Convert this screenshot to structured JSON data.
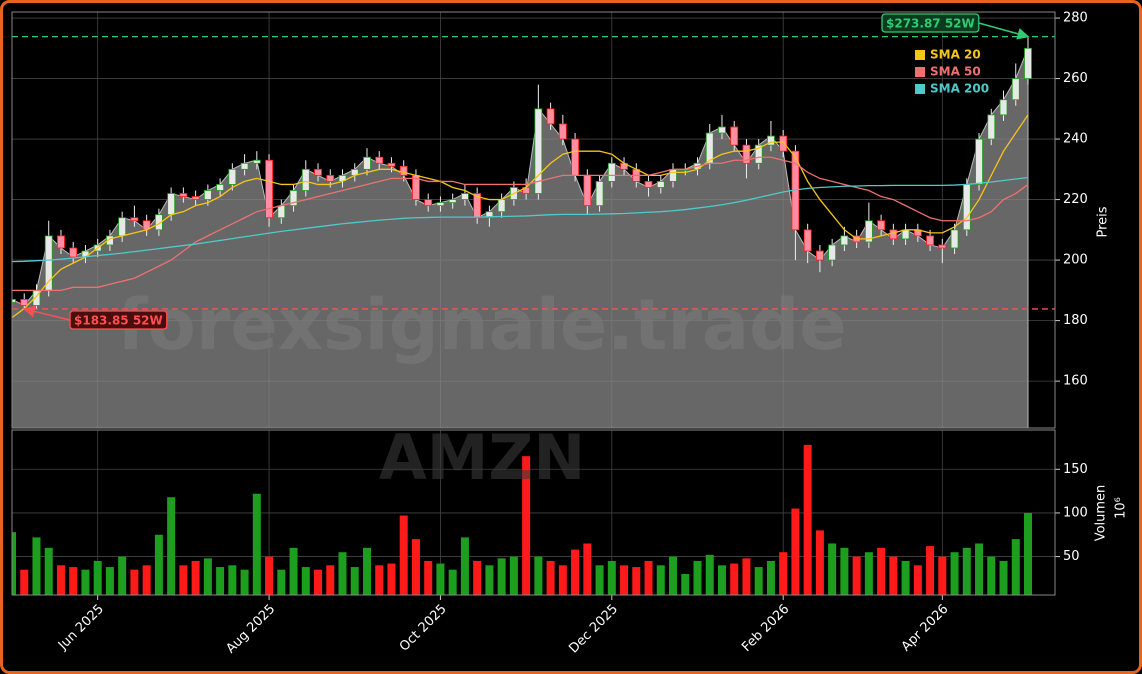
{
  "chart_data": {
    "type": "candlestick",
    "watermarks": [
      "forexsignale.trade",
      "AMZN"
    ],
    "ylabel": "Preis",
    "categories": [
      null,
      null,
      null,
      null,
      null,
      null,
      null,
      "Jun 2025",
      null,
      null,
      null,
      null,
      null,
      null,
      null,
      null,
      null,
      null,
      null,
      null,
      null,
      "Aug 2025",
      null,
      null,
      null,
      null,
      null,
      null,
      null,
      null,
      null,
      null,
      null,
      null,
      null,
      "Oct 2025",
      null,
      null,
      null,
      null,
      null,
      null,
      null,
      null,
      null,
      null,
      null,
      null,
      null,
      "Dec 2025",
      null,
      null,
      null,
      null,
      null,
      null,
      null,
      null,
      null,
      null,
      null,
      null,
      null,
      "Feb 2026",
      null,
      null,
      null,
      null,
      null,
      null,
      null,
      null,
      null,
      null,
      null,
      null,
      "Apr 2026",
      null,
      null,
      null,
      null,
      null,
      null,
      null
    ],
    "open": [
      186,
      187,
      185,
      190,
      208,
      204,
      201,
      203,
      205,
      208,
      214,
      213,
      210,
      215,
      222,
      221,
      220,
      223,
      225,
      230,
      232,
      233,
      214,
      218,
      223,
      230,
      228,
      226,
      228,
      230,
      234,
      232,
      231,
      228,
      220,
      218,
      219,
      220,
      222,
      214,
      216,
      220,
      224,
      222,
      250,
      245,
      240,
      228,
      218,
      226,
      232,
      230,
      226,
      224,
      226,
      230,
      230,
      232,
      242,
      244,
      238,
      232,
      238,
      241,
      236,
      210,
      203,
      200,
      205,
      208,
      206,
      213,
      210,
      207,
      210,
      208,
      205,
      204,
      210,
      225,
      240,
      248,
      253,
      260
    ],
    "high": [
      189,
      189,
      192,
      213,
      210,
      206,
      205,
      207,
      210,
      216,
      218,
      215,
      217,
      224,
      224,
      223,
      225,
      227,
      232,
      235,
      236,
      235,
      220,
      225,
      233,
      232,
      230,
      230,
      232,
      237,
      236,
      234,
      233,
      230,
      222,
      221,
      222,
      225,
      224,
      218,
      222,
      226,
      227,
      258,
      252,
      248,
      242,
      230,
      228,
      234,
      234,
      232,
      228,
      228,
      232,
      232,
      234,
      245,
      248,
      246,
      240,
      240,
      246,
      243,
      238,
      212,
      205,
      207,
      211,
      210,
      219,
      215,
      212,
      212,
      212,
      210,
      207,
      212,
      227,
      242,
      250,
      256,
      265,
      273.87
    ],
    "low": [
      184,
      183.85,
      184,
      188,
      202,
      199,
      199,
      201,
      203,
      206,
      211,
      208,
      208,
      213,
      219,
      218,
      218,
      221,
      223,
      228,
      230,
      211,
      212,
      216,
      221,
      226,
      224,
      224,
      226,
      228,
      230,
      229,
      226,
      218,
      216,
      216,
      217,
      218,
      212,
      211,
      214,
      218,
      220,
      220,
      243,
      238,
      226,
      215,
      216,
      224,
      228,
      224,
      221,
      222,
      224,
      228,
      228,
      230,
      240,
      236,
      227,
      230,
      236,
      234,
      200,
      199,
      196,
      198,
      203,
      204,
      204,
      208,
      205,
      205,
      206,
      203,
      199,
      202,
      208,
      223,
      238,
      246,
      251,
      258
    ],
    "close": [
      187,
      185,
      190,
      208,
      204,
      201,
      203,
      205,
      208,
      214,
      213,
      210,
      215,
      222,
      221,
      220,
      223,
      225,
      230,
      232,
      233,
      214,
      218,
      223,
      230,
      228,
      226,
      228,
      230,
      234,
      232,
      231,
      228,
      220,
      218,
      219,
      220,
      222,
      214,
      216,
      220,
      224,
      222,
      250,
      245,
      240,
      228,
      218,
      226,
      232,
      230,
      226,
      224,
      226,
      230,
      230,
      232,
      242,
      244,
      238,
      232,
      238,
      241,
      236,
      210,
      203,
      200,
      205,
      208,
      206,
      213,
      210,
      207,
      210,
      208,
      205,
      204,
      210,
      225,
      240,
      248,
      253,
      260,
      270
    ],
    "up_color": "#1e9e1e",
    "down_color": "#ff1a1a",
    "area_color": "#8a8a8a",
    "series": [
      {
        "name": "SMA 20",
        "color": "#f5c518",
        "values": [
          181,
          184,
          188,
          193,
          197,
          199,
          201,
          204,
          207,
          208,
          209,
          210,
          212,
          215,
          216,
          218,
          219,
          221,
          224,
          226,
          227,
          226,
          225,
          225,
          226,
          225,
          225,
          226,
          228,
          229,
          230,
          230,
          229,
          228,
          227,
          226,
          224,
          223,
          221,
          220,
          220,
          222,
          224,
          228,
          232,
          235,
          236,
          236,
          236,
          235,
          232,
          230,
          228,
          228,
          229,
          229,
          230,
          233,
          235,
          236,
          236,
          237,
          239,
          239,
          234,
          226,
          220,
          215,
          210,
          207,
          207,
          208,
          209,
          210,
          210,
          209,
          209,
          211,
          214,
          220,
          228,
          236,
          242,
          248
        ]
      },
      {
        "name": "SMA 50",
        "color": "#f07070",
        "values": [
          190,
          190,
          190,
          190,
          190,
          191,
          191,
          191,
          192,
          193,
          194,
          196,
          198,
          200,
          203,
          206,
          208,
          210,
          212,
          214,
          216,
          217,
          218,
          219,
          220,
          221,
          222,
          223,
          224,
          225,
          226,
          227,
          227,
          227,
          226,
          226,
          226,
          225,
          225,
          225,
          225,
          225,
          225,
          226,
          227,
          228,
          228,
          228,
          228,
          228,
          228,
          228,
          228,
          229,
          230,
          230,
          231,
          232,
          232,
          233,
          233,
          234,
          234,
          233,
          232,
          229,
          227,
          226,
          225,
          224,
          223,
          221,
          220,
          218,
          216,
          214,
          213,
          213,
          213,
          214,
          216,
          220,
          222,
          225
        ]
      },
      {
        "name": "SMA 200",
        "color": "#4fc9c9",
        "values": [
          199.5,
          199.6,
          199.8,
          200,
          200.3,
          200.7,
          201.1,
          201.5,
          201.9,
          202.3,
          202.8,
          203.3,
          203.8,
          204.3,
          204.8,
          205.3,
          205.9,
          206.5,
          207.1,
          207.7,
          208.3,
          208.9,
          209.5,
          210,
          210.5,
          211,
          211.5,
          212,
          212.4,
          212.8,
          213.2,
          213.5,
          213.8,
          214,
          214.1,
          214.2,
          214.2,
          214.2,
          214.2,
          214.3,
          214.4,
          214.5,
          214.6,
          214.8,
          215,
          215.1,
          215.1,
          215.1,
          215.2,
          215.3,
          215.4,
          215.6,
          215.8,
          216,
          216.3,
          216.7,
          217.2,
          217.7,
          218.3,
          219,
          219.8,
          220.7,
          221.6,
          222.5,
          223.2,
          223.7,
          224,
          224.2,
          224.4,
          224.5,
          224.6,
          224.6,
          224.7,
          224.7,
          224.7,
          224.7,
          224.7,
          224.8,
          225,
          225.4,
          225.8,
          226.3,
          226.8,
          227.3
        ]
      }
    ],
    "legend": "upper right",
    "grid": true,
    "ylim": [
      144.5,
      282
    ],
    "yticks": [
      160,
      180,
      200,
      220,
      240,
      260,
      280
    ],
    "annotations": [
      {
        "value": 273.87,
        "label": "$273.87 52W",
        "color": "#2ecc71"
      },
      {
        "value": 183.85,
        "label": "$183.85 52W",
        "color": "#ff5050"
      }
    ],
    "volume": {
      "ylabel": "Volumen",
      "scale_label": "10⁶",
      "ylim": [
        6,
        195
      ],
      "yticks": [
        50,
        100,
        150
      ],
      "values": [
        78,
        35,
        72,
        60,
        40,
        38,
        35,
        45,
        38,
        50,
        35,
        40,
        75,
        118,
        40,
        45,
        48,
        38,
        40,
        35,
        122,
        50,
        35,
        60,
        38,
        35,
        40,
        55,
        38,
        60,
        40,
        42,
        97,
        70,
        45,
        42,
        35,
        72,
        45,
        40,
        48,
        50,
        165,
        50,
        45,
        40,
        58,
        65,
        40,
        45,
        40,
        38,
        45,
        40,
        50,
        30,
        45,
        52,
        40,
        42,
        48,
        38,
        45,
        55,
        105,
        178,
        80,
        65,
        60,
        50,
        55,
        60,
        50,
        45,
        40,
        62,
        50,
        55,
        60,
        65,
        50,
        45,
        70,
        100
      ]
    }
  }
}
